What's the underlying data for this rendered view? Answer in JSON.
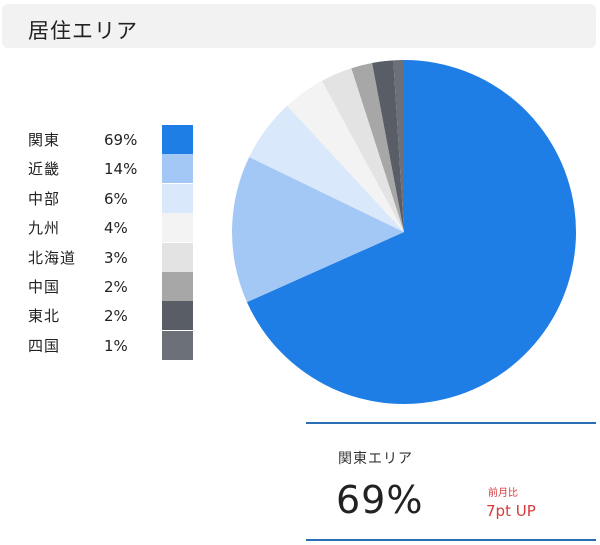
{
  "header": {
    "title": "居住エリア"
  },
  "chart_data": {
    "type": "pie",
    "title": "",
    "categories": [
      "関東",
      "近畿",
      "中部",
      "九州",
      "北海道",
      "中国",
      "東北",
      "四国"
    ],
    "values": [
      69,
      14,
      6,
      4,
      3,
      2,
      2,
      1
    ],
    "labels": [
      "69%",
      "14%",
      "6%",
      "4%",
      "3%",
      "2%",
      "2%",
      "1%"
    ],
    "colors": [
      "#1f7de6",
      "#a4c8f5",
      "#dae8fb",
      "#f3f3f3",
      "#e3e3e3",
      "#a7a7a7",
      "#585d66",
      "#6b7079"
    ],
    "legend_position": "left"
  },
  "summary": {
    "label": "関東エリア",
    "value": "69%",
    "compare_label": "前月比",
    "compare_value": "7pt UP",
    "accent_color": "#d43c3c",
    "rule_color": "#2a6fb5"
  }
}
